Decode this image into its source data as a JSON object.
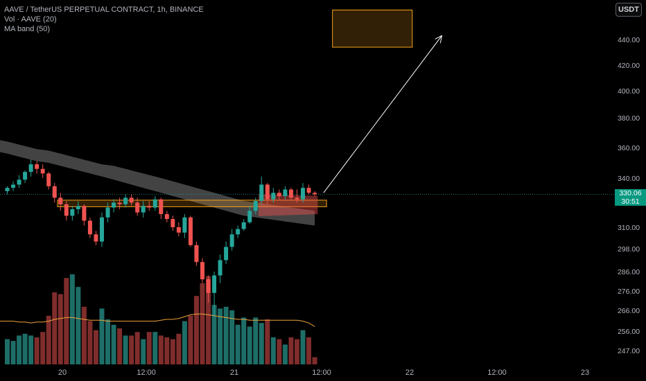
{
  "header": {
    "symbol_line": "AAVE / TetherUS PERPETUAL CONTRACT, 1h, BINANCE",
    "volume_line": "Vol · AAVE (20)",
    "ma_line": "MA band (50)"
  },
  "toolbar": {
    "currency_label": "USDT"
  },
  "price_tag": {
    "price": "330.06",
    "countdown": "30:51",
    "color": "#089981"
  },
  "chart_data": {
    "type": "candlestick",
    "title": "AAVE / TetherUS PERPETUAL CONTRACT, 1h, BINANCE",
    "y_ticks": [
      "440.00",
      "420.00",
      "400.00",
      "380.00",
      "360.00",
      "340.00",
      "310.00",
      "298.00",
      "286.00",
      "276.00",
      "266.00",
      "256.00",
      "247.00"
    ],
    "x_ticks": [
      "20",
      "12:00",
      "21",
      "12:00",
      "22",
      "12:00",
      "23"
    ],
    "colors": {
      "up": "#26a69a",
      "down": "#ef5350",
      "vol_up": "#1e6e68",
      "vol_down": "#7f2d2c",
      "ma_band": "#5a5a5a",
      "vol_ma": "#f0a23a",
      "zone": "#f7a21b"
    },
    "last_price": 330.06,
    "candles": [
      [
        332,
        335,
        330,
        334
      ],
      [
        334,
        338,
        332,
        336
      ],
      [
        336,
        342,
        334,
        339
      ],
      [
        339,
        345,
        337,
        344
      ],
      [
        344,
        352,
        341,
        349
      ],
      [
        349,
        351,
        343,
        346
      ],
      [
        346,
        349,
        340,
        343
      ],
      [
        343,
        344,
        333,
        335
      ],
      [
        335,
        337,
        325,
        328
      ],
      [
        328,
        331,
        320,
        324
      ],
      [
        324,
        326,
        314,
        317
      ],
      [
        317,
        323,
        314,
        321
      ],
      [
        321,
        326,
        318,
        323
      ],
      [
        323,
        324,
        311,
        314
      ],
      [
        314,
        316,
        304,
        306
      ],
      [
        306,
        308,
        300,
        302
      ],
      [
        302,
        319,
        299,
        316
      ],
      [
        316,
        325,
        313,
        322
      ],
      [
        322,
        327,
        319,
        325
      ],
      [
        325,
        328,
        321,
        324
      ],
      [
        324,
        330,
        322,
        328
      ],
      [
        328,
        330,
        323,
        325
      ],
      [
        325,
        328,
        317,
        319
      ],
      [
        319,
        326,
        316,
        323
      ],
      [
        323,
        326,
        320,
        322
      ],
      [
        322,
        329,
        320,
        327
      ],
      [
        327,
        328,
        315,
        318
      ],
      [
        318,
        320,
        313,
        315
      ],
      [
        315,
        317,
        308,
        310
      ],
      [
        310,
        313,
        305,
        307
      ],
      [
        307,
        318,
        304,
        316
      ],
      [
        316,
        317,
        299,
        300
      ],
      [
        300,
        302,
        289,
        291
      ],
      [
        291,
        293,
        280,
        282
      ],
      [
        282,
        284,
        270,
        275
      ],
      [
        275,
        286,
        263,
        284
      ],
      [
        284,
        295,
        280,
        292
      ],
      [
        292,
        302,
        290,
        299
      ],
      [
        299,
        309,
        297,
        306
      ],
      [
        306,
        311,
        304,
        309
      ],
      [
        309,
        315,
        308,
        313
      ],
      [
        313,
        323,
        312,
        320
      ],
      [
        320,
        328,
        318,
        326
      ],
      [
        326,
        341,
        324,
        336
      ],
      [
        336,
        337,
        324,
        327
      ],
      [
        327,
        334,
        325,
        331
      ],
      [
        331,
        333,
        327,
        329
      ],
      [
        329,
        335,
        327,
        333
      ],
      [
        333,
        334,
        326,
        328
      ],
      [
        328,
        333,
        325,
        327
      ],
      [
        327,
        337,
        325,
        334
      ],
      [
        334,
        336,
        330,
        331
      ],
      [
        331,
        332,
        329,
        330.06
      ]
    ],
    "volume": [
      14,
      13,
      16,
      17,
      16,
      15,
      18,
      27,
      40,
      39,
      48,
      50,
      43,
      32,
      24,
      19,
      31,
      25,
      22,
      20,
      16,
      16,
      18,
      14,
      18,
      18,
      16,
      15,
      14,
      17,
      24,
      27,
      38,
      45,
      49,
      33,
      31,
      32,
      30,
      22,
      26,
      21,
      26,
      23,
      25,
      15,
      14,
      11,
      15,
      14,
      19,
      15,
      4
    ],
    "volume_ma": [
      24,
      24,
      23.5,
      23.5,
      23,
      23.5,
      23.5,
      24,
      25,
      25.5,
      26,
      26,
      25.5,
      25,
      24.5,
      24.5,
      24.5,
      24,
      24,
      24,
      24,
      24,
      24,
      24,
      24,
      24,
      24.5,
      25,
      25,
      25.5,
      26.5,
      27.5,
      28,
      28,
      27.5,
      27,
      26.5,
      26,
      25.5,
      25,
      25,
      24.5,
      24.5,
      24.5,
      24.5,
      24.5,
      24.5,
      24.5,
      24.5,
      24.5,
      24,
      23,
      21
    ],
    "ma_band_upper": [
      364,
      363,
      362,
      361,
      360,
      359,
      358.5,
      358,
      357,
      356,
      355,
      354,
      353,
      352,
      351,
      350,
      349,
      348.5,
      348,
      347,
      346,
      345,
      344,
      343,
      342,
      341,
      340,
      339,
      338,
      337,
      336,
      335,
      334,
      333,
      332,
      331,
      330,
      329,
      328,
      327,
      326,
      325.5,
      325,
      324.5,
      324,
      323.5,
      323,
      322.5,
      322,
      321.5,
      321,
      320.5,
      320
    ],
    "ma_band_lower": [
      356,
      355,
      354,
      353,
      352,
      351,
      350.5,
      350,
      349,
      348,
      347,
      346,
      345,
      344,
      343,
      342,
      341,
      340,
      339,
      338,
      337,
      336,
      335,
      334,
      333,
      332,
      331,
      330,
      329,
      328,
      327,
      326,
      325,
      324,
      323,
      322,
      321,
      320,
      319,
      318,
      317,
      316.5,
      316,
      315.5,
      315,
      314.5,
      314,
      313.5,
      313,
      312.5,
      312,
      311.5,
      311
    ],
    "annotations": [
      {
        "kind": "zone",
        "from_x": 8.5,
        "to_x": 54,
        "low": 322.5,
        "high": 326.5
      },
      {
        "kind": "zone",
        "from_x": 55,
        "to_x": 68.5,
        "low": 434,
        "high": 463
      },
      {
        "kind": "zone",
        "from_x": 42.5,
        "to_x": 52.5,
        "low": 318,
        "high": 330,
        "color": "#ef5350"
      },
      {
        "kind": "arrow",
        "from": [
          53.5,
          331
        ],
        "to": [
          73.5,
          443
        ]
      }
    ]
  }
}
